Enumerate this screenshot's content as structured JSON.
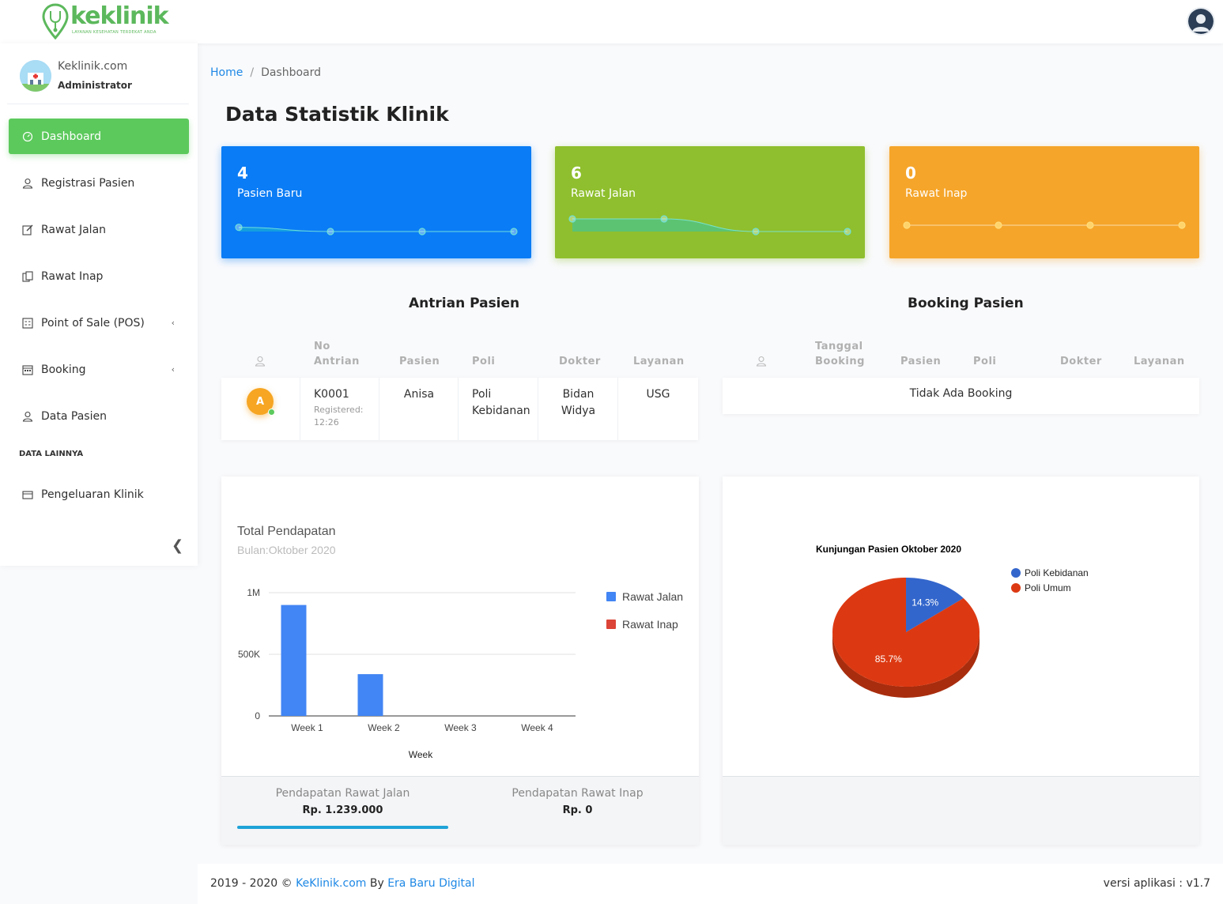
{
  "header": {
    "logo_text": "keklinik",
    "logo_tagline": "LAYANAN KESEHATAN TERDEKAT ANDA"
  },
  "sidebar": {
    "profile": {
      "site": "Keklinik.com",
      "role": "Administrator"
    },
    "items": [
      {
        "label": "Dashboard",
        "icon": "gauge-icon",
        "active": true
      },
      {
        "label": "Registrasi Pasien",
        "icon": "user-icon"
      },
      {
        "label": "Rawat Jalan",
        "icon": "edit-icon"
      },
      {
        "label": "Rawat Inap",
        "icon": "copy-icon"
      },
      {
        "label": "Point of Sale (POS)",
        "icon": "calculator-icon",
        "has_submenu": true
      },
      {
        "label": "Booking",
        "icon": "calendar-icon",
        "has_submenu": true
      },
      {
        "label": "Data Pasien",
        "icon": "user-icon"
      }
    ],
    "section_label": "DATA LAINNYA",
    "extra_items": [
      {
        "label": "Pengeluaran Klinik",
        "icon": "wallet-icon"
      }
    ]
  },
  "breadcrumb": {
    "home": "Home",
    "separator": "/",
    "current": "Dashboard"
  },
  "page_title": "Data Statistik Klinik",
  "stats": [
    {
      "value": "4",
      "label": "Pasien Baru",
      "color": "#0a7cf5",
      "sparkline": [
        1,
        0,
        0,
        0
      ]
    },
    {
      "value": "6",
      "label": "Rawat Jalan",
      "color": "#8fbf2e",
      "sparkline": [
        3,
        3,
        0,
        0
      ]
    },
    {
      "value": "0",
      "label": "Rawat Inap",
      "color": "#f5a52a",
      "sparkline": [
        0,
        0,
        0,
        0
      ]
    }
  ],
  "queue": {
    "title": "Antrian Pasien",
    "headers": [
      "No Antrian",
      "Pasien",
      "Poli",
      "Dokter",
      "Layanan"
    ],
    "rows": [
      {
        "initial": "A",
        "no": "K0001",
        "registered": "Registered: 12:26",
        "patient": "Anisa",
        "poli": "Poli Kebidanan",
        "doctor": "Bidan Widya",
        "service": "USG"
      }
    ]
  },
  "booking": {
    "title": "Booking Pasien",
    "headers": [
      "Tanggal Booking",
      "Pasien",
      "Poli",
      "Dokter",
      "Layanan"
    ],
    "empty_text": "Tidak Ada Booking"
  },
  "revenue": {
    "title": "Total Pendapatan",
    "subtitle": "Bulan:Oktober 2020",
    "footer": [
      {
        "label": "Pendapatan Rawat Jalan",
        "value": "Rp. 1.239.000"
      },
      {
        "label": "Pendapatan Rawat Inap",
        "value": "Rp. 0"
      }
    ]
  },
  "chart_data": [
    {
      "type": "bar",
      "categories": [
        "Week 1",
        "Week 2",
        "Week 3",
        "Week 4"
      ],
      "series": [
        {
          "name": "Rawat Jalan",
          "color": "#4285f4",
          "values": [
            900000,
            339000,
            0,
            0
          ]
        },
        {
          "name": "Rawat Inap",
          "color": "#db4437",
          "values": [
            0,
            0,
            0,
            0
          ]
        }
      ],
      "xlabel": "Week",
      "ylabel": "",
      "ylim": [
        0,
        1000000
      ],
      "yticks": [
        "0",
        "500K",
        "1M"
      ],
      "grid": true,
      "legend": "right"
    },
    {
      "type": "pie",
      "title": "Kunjungan Pasien Oktober 2020",
      "labels": [
        "Poli Kebidanan",
        "Poli Umum"
      ],
      "values": [
        14.3,
        85.7
      ],
      "value_labels": [
        "14.3%",
        "85.7%"
      ],
      "colors": [
        "#3366cc",
        "#dc3912"
      ],
      "legend": "right"
    }
  ],
  "footer": {
    "copyright": "2019 - 2020 ©",
    "site_link": "KeKlinik.com",
    "by": "By",
    "company_link": "Era Baru Digital",
    "version": "versi aplikasi : v1.7"
  }
}
